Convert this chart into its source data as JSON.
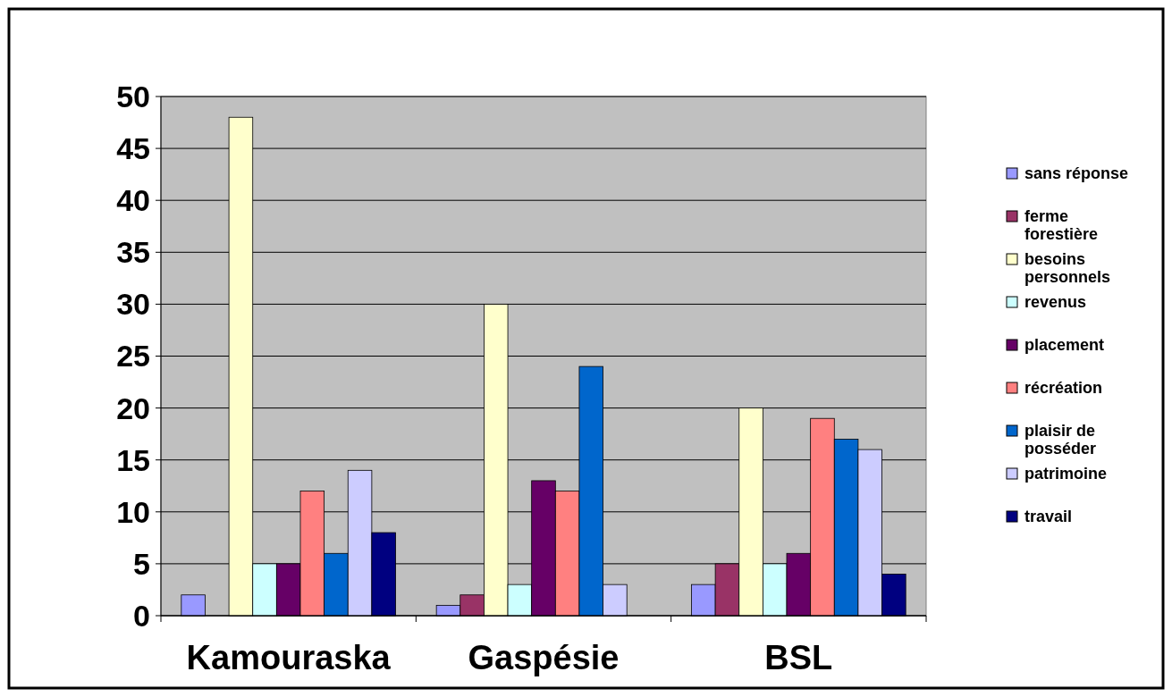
{
  "chart_data": {
    "type": "bar",
    "categories": [
      "Kamouraska",
      "Gaspésie",
      "BSL"
    ],
    "series": [
      {
        "name": "sans réponse",
        "color": "#9999ff",
        "values": [
          2,
          1,
          3
        ]
      },
      {
        "name": "ferme forestière",
        "color": "#993366",
        "values": [
          0,
          2,
          5
        ]
      },
      {
        "name": "besoins personnels",
        "color": "#ffffcc",
        "values": [
          48,
          30,
          20
        ]
      },
      {
        "name": "revenus",
        "color": "#ccffff",
        "values": [
          5,
          3,
          5
        ]
      },
      {
        "name": "placement",
        "color": "#660066",
        "values": [
          5,
          13,
          6
        ]
      },
      {
        "name": "récréation",
        "color": "#ff8080",
        "values": [
          12,
          12,
          19
        ]
      },
      {
        "name": "plaisir de posséder",
        "color": "#0066cc",
        "values": [
          6,
          24,
          17
        ]
      },
      {
        "name": "patrimoine",
        "color": "#ccccff",
        "values": [
          14,
          3,
          16
        ]
      },
      {
        "name": "travail",
        "color": "#000080",
        "values": [
          8,
          0,
          4
        ]
      }
    ],
    "ylim": [
      0,
      50
    ],
    "yticks": [
      0,
      5,
      10,
      15,
      20,
      25,
      30,
      35,
      40,
      45,
      50
    ],
    "grid": "y",
    "legend": "right"
  }
}
